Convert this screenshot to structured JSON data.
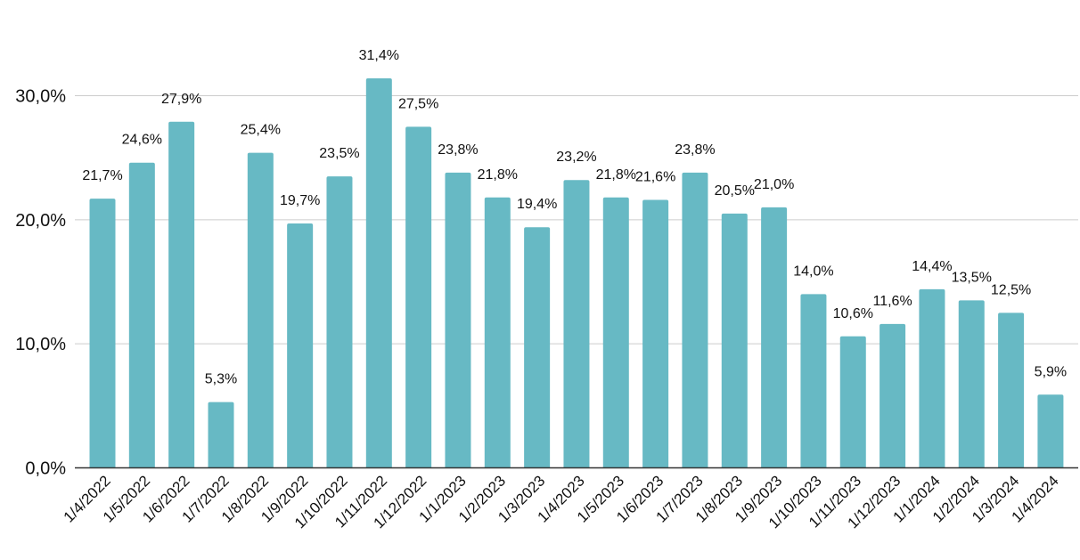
{
  "chart_data": {
    "type": "bar",
    "title": "",
    "xlabel": "",
    "ylabel": "",
    "categories": [
      "1/4/2022",
      "1/5/2022",
      "1/6/2022",
      "1/7/2022",
      "1/8/2022",
      "1/9/2022",
      "1/10/2022",
      "1/11/2022",
      "1/12/2022",
      "1/1/2023",
      "1/2/2023",
      "1/3/2023",
      "1/4/2023",
      "1/5/2023",
      "1/6/2023",
      "1/7/2023",
      "1/8/2023",
      "1/9/2023",
      "1/10/2023",
      "1/11/2023",
      "1/12/2023",
      "1/1/2024",
      "1/2/2024",
      "1/3/2024",
      "1/4/2024"
    ],
    "values": [
      21.7,
      24.6,
      27.9,
      5.3,
      25.4,
      19.7,
      23.5,
      31.4,
      27.5,
      23.8,
      21.8,
      19.4,
      23.2,
      21.8,
      21.6,
      23.8,
      20.5,
      21.0,
      14.0,
      10.6,
      11.6,
      14.4,
      13.5,
      12.5,
      5.9
    ],
    "data_labels": [
      "21,7%",
      "24,6%",
      "27,9%",
      "5,3%",
      "25,4%",
      "19,7%",
      "23,5%",
      "31,4%",
      "27,5%",
      "23,8%",
      "21,8%",
      "19,4%",
      "23,2%",
      "21,8%",
      "21,6%",
      "23,8%",
      "20,5%",
      "21,0%",
      "14,0%",
      "10,6%",
      "11,6%",
      "14,4%",
      "13,5%",
      "12,5%",
      "5,9%"
    ],
    "yticks": [
      0,
      10,
      20,
      30
    ],
    "ytick_labels": [
      "0,0%",
      "10,0%",
      "20,0%",
      "30,0%"
    ],
    "ylim": [
      0,
      30
    ],
    "grid": true,
    "legend": "none",
    "bar_color": "#67B9C4",
    "grid_color": "#CCCCCC",
    "axis_color": "#333333"
  }
}
